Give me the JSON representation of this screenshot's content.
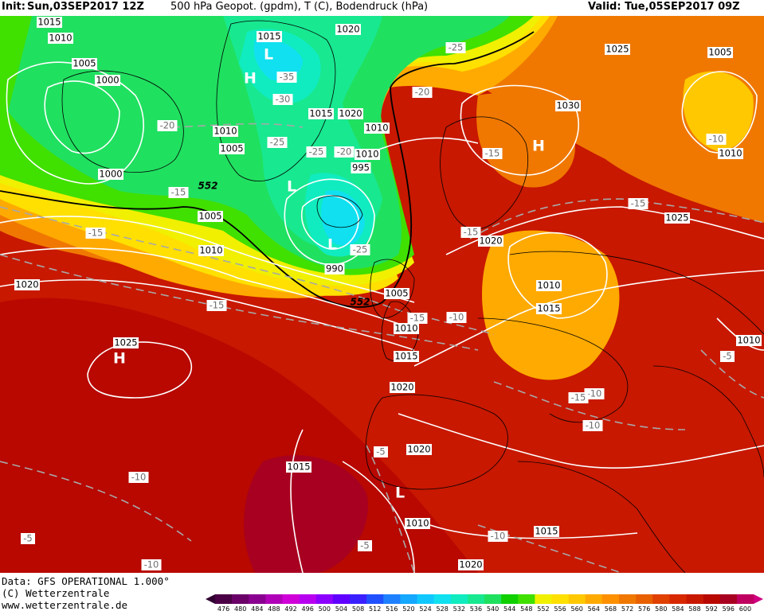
{
  "header": {
    "init_label": "Init:",
    "init_date": "Sun,03SEP2017 12Z",
    "product": "500 hPa Geopot. (gpdm), T (C), Bodendruck (hPa)",
    "valid": "Valid: Tue,05SEP2017 09Z"
  },
  "footer": {
    "data_line": "Data: GFS OPERATIONAL 1.000°",
    "copyright": "(C) Wetterzentrale",
    "website": "www.wetterzentrale.de"
  },
  "legend": {
    "values": [
      "476",
      "480",
      "484",
      "488",
      "492",
      "496",
      "500",
      "504",
      "508",
      "512",
      "516",
      "520",
      "524",
      "528",
      "532",
      "536",
      "540",
      "544",
      "548",
      "552",
      "556",
      "560",
      "564",
      "568",
      "572",
      "576",
      "580",
      "584",
      "588",
      "592",
      "596",
      "600"
    ],
    "colors": [
      "#4b0046",
      "#6a0068",
      "#8a0090",
      "#b000b8",
      "#d000d8",
      "#b800f0",
      "#8c00ff",
      "#6000ff",
      "#3a20ff",
      "#2050ff",
      "#1e80ff",
      "#14a8ff",
      "#10c8ff",
      "#10e0f0",
      "#10ecc0",
      "#18e890",
      "#20e060",
      "#10d000",
      "#40e000",
      "#f0f000",
      "#ffe000",
      "#ffc800",
      "#ffaa00",
      "#ff9000",
      "#f07800",
      "#e86000",
      "#e04000",
      "#d82800",
      "#c81800",
      "#b80800",
      "#a80020",
      "#c00060"
    ]
  },
  "map": {
    "pressure_labels": [
      "1015",
      "1010",
      "1005",
      "1000",
      "1020",
      "1015",
      "1010",
      "1005",
      "1000",
      "995",
      "990",
      "1005",
      "1010",
      "1010",
      "1015",
      "1020",
      "1025",
      "1030",
      "1005",
      "1010",
      "1015",
      "1020",
      "1010",
      "1015",
      "1020",
      "1025",
      "1010",
      "1005",
      "1010",
      "1015",
      "1020",
      "1020",
      "1025",
      "1015",
      "1010",
      "1020",
      "1010"
    ],
    "temperature_labels": [
      "-25",
      "-35",
      "-30",
      "-20",
      "-25",
      "-25",
      "-20",
      "-15",
      "-15",
      "-25",
      "-20",
      "-15",
      "-15",
      "-15",
      "-10",
      "-15",
      "-10",
      "-15",
      "-15",
      "-10",
      "-10",
      "-5",
      "-10",
      "-5",
      "-5",
      "-10",
      "-5",
      "-10"
    ],
    "highs_lows": [
      "L",
      "H",
      "L",
      "L",
      "H",
      "H",
      "L"
    ],
    "geopotential_labels": [
      "552",
      "552"
    ]
  },
  "colors": {
    "white_line": "#ffffff",
    "dashed_line": "#a8a8a8"
  }
}
